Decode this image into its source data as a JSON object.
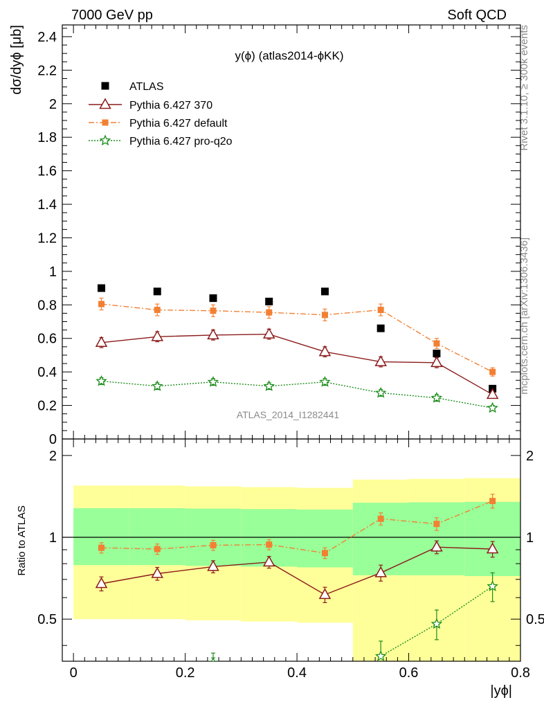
{
  "header": {
    "left": "7000 GeV pp",
    "right": "Soft QCD"
  },
  "side_text": {
    "rivet": "Rivet 3.1.10, ≥ 300k events",
    "mcplots": "mcplots.cern.ch [arXiv:1306.3436]"
  },
  "watermark": "ATLAS_2014_I1282441",
  "colors": {
    "data": "#000000",
    "p370": "#8b1a1a",
    "pdefault": "#f28033",
    "pq2o": "#1a8c1a",
    "band_yellow": "#ffff99",
    "band_green": "#99ff99"
  },
  "chart_data": {
    "type": "scatter",
    "title": "y(ϕ) (atlas2014-ϕKK)",
    "xlabel": "|yϕ|",
    "ylabel": "dσ/dyϕ [μb]",
    "ratio_ylabel": "Ratio to ATLAS",
    "xlim": [
      -0.02,
      0.8
    ],
    "ylim": [
      0,
      2.47
    ],
    "ratio_ylim": [
      0.35,
      2.3
    ],
    "x_ticks": [
      "0",
      "0.2",
      "0.4",
      "0.6",
      "0.8"
    ],
    "y_ticks": [
      "0",
      "0.2",
      "0.4",
      "0.6",
      "0.8",
      "1",
      "1.2",
      "1.4",
      "1.6",
      "1.8",
      "2",
      "2.2",
      "2.4"
    ],
    "ratio_ticks": [
      "0.5",
      "1",
      "2"
    ],
    "x": [
      0.05,
      0.15,
      0.25,
      0.35,
      0.45,
      0.55,
      0.65,
      0.75
    ],
    "bin_edges": [
      0.0,
      0.1,
      0.2,
      0.3,
      0.4,
      0.5,
      0.6,
      0.7,
      0.8
    ],
    "series": [
      {
        "name": "ATLAS",
        "key": "data",
        "values": [
          0.9,
          0.88,
          0.84,
          0.82,
          0.88,
          0.66,
          0.51,
          0.3
        ]
      },
      {
        "name": "Pythia 6.427 370",
        "key": "p370",
        "values": [
          0.575,
          0.61,
          0.62,
          0.625,
          0.52,
          0.46,
          0.455,
          0.265
        ],
        "errors": [
          0.03,
          0.03,
          0.03,
          0.03,
          0.03,
          0.03,
          0.03,
          0.02
        ],
        "ratio": [
          0.675,
          0.735,
          0.78,
          0.81,
          0.615,
          0.74,
          0.92,
          0.905
        ],
        "ratio_err": [
          0.04,
          0.04,
          0.04,
          0.04,
          0.04,
          0.05,
          0.05,
          0.06
        ]
      },
      {
        "name": "Pythia 6.427 default",
        "key": "pdefault",
        "values": [
          0.805,
          0.77,
          0.765,
          0.755,
          0.74,
          0.77,
          0.57,
          0.4
        ],
        "errors": [
          0.035,
          0.035,
          0.035,
          0.035,
          0.035,
          0.035,
          0.03,
          0.025
        ],
        "ratio": [
          0.915,
          0.905,
          0.935,
          0.94,
          0.875,
          1.17,
          1.12,
          1.36
        ],
        "ratio_err": [
          0.04,
          0.04,
          0.04,
          0.04,
          0.04,
          0.06,
          0.06,
          0.08
        ]
      },
      {
        "name": "Pythia 6.427 pro-q2o",
        "key": "pq2o",
        "values": [
          0.345,
          0.315,
          0.34,
          0.315,
          0.34,
          0.275,
          0.245,
          0.185
        ],
        "errors": [
          0.02,
          0.02,
          0.02,
          0.02,
          0.02,
          0.02,
          0.02,
          0.015
        ],
        "ratio": [
          null,
          null,
          0.345,
          null,
          null,
          0.365,
          0.48,
          0.66
        ],
        "ratio_err": [
          0,
          0,
          0.03,
          0,
          0,
          0.05,
          0.06,
          0.08
        ]
      }
    ],
    "bands": {
      "yellow_lo": [
        0.5,
        0.5,
        0.495,
        0.49,
        0.485,
        0.25,
        0.25,
        0.25
      ],
      "yellow_hi": [
        1.55,
        1.55,
        1.54,
        1.53,
        1.52,
        1.63,
        1.64,
        1.65
      ],
      "green_lo": [
        0.79,
        0.79,
        0.785,
        0.78,
        0.775,
        0.725,
        0.725,
        0.72
      ],
      "green_hi": [
        1.28,
        1.28,
        1.275,
        1.27,
        1.265,
        1.34,
        1.345,
        1.35
      ]
    }
  }
}
